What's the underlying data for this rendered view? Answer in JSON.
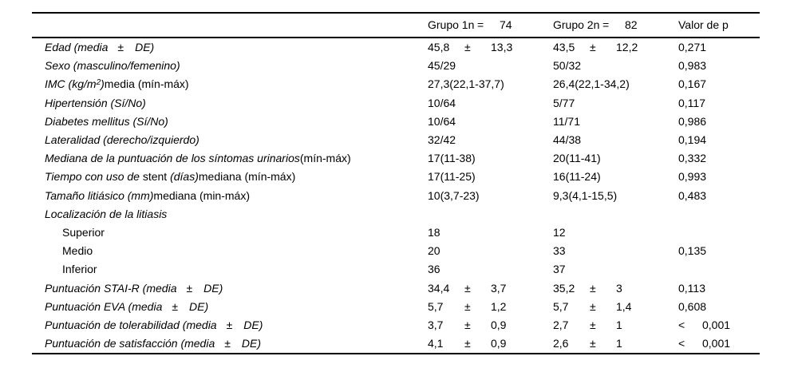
{
  "table": {
    "pm_symbol": "±",
    "header": {
      "group1": {
        "title": "Grupo 1n",
        "eq": "=",
        "n": "74"
      },
      "group2": {
        "title": "Grupo 2n",
        "eq": "=",
        "n": "82"
      },
      "p_label": "Valor de p"
    },
    "rows": [
      {
        "label": [
          {
            "t": "Edad (media",
            "i": true
          },
          {
            "t": "±",
            "i": true,
            "g": 12
          },
          {
            "t": "DE)",
            "i": true,
            "g": 14
          }
        ],
        "g1": {
          "m": "45,8",
          "sd": "13,3"
        },
        "g2": {
          "m": "43,5",
          "sd": "12,2"
        },
        "p": {
          "v": "0,271"
        }
      },
      {
        "label": [
          {
            "t": "Sexo (masculino/femenino)",
            "i": true
          }
        ],
        "g1": {
          "v": "45/29"
        },
        "g2": {
          "v": "50/32"
        },
        "p": {
          "v": "0,983"
        }
      },
      {
        "label": [
          {
            "t": "IMC (kg/m",
            "i": true
          },
          {
            "t": "2",
            "i": true,
            "sup": true
          },
          {
            "t": ")",
            "i": true
          },
          {
            "t": "media (mín-máx)",
            "i": false
          }
        ],
        "g1": {
          "v": "27,3(22,1-37,7)"
        },
        "g2": {
          "v": "26,4(22,1-34,2)"
        },
        "p": {
          "v": "0,167"
        }
      },
      {
        "label": [
          {
            "t": "Hipertensión (Sí/No)",
            "i": true
          }
        ],
        "g1": {
          "v": "10/64"
        },
        "g2": {
          "v": "5/77"
        },
        "p": {
          "v": "0,117"
        }
      },
      {
        "label": [
          {
            "t": "Diabetes mellitus (Sí/No)",
            "i": true
          }
        ],
        "g1": {
          "v": "10/64"
        },
        "g2": {
          "v": "11/71"
        },
        "p": {
          "v": "0,986"
        }
      },
      {
        "label": [
          {
            "t": "Lateralidad (derecho/izquierdo)",
            "i": true
          }
        ],
        "g1": {
          "v": "32/42"
        },
        "g2": {
          "v": "44/38"
        },
        "p": {
          "v": "0,194"
        }
      },
      {
        "label": [
          {
            "t": "Mediana de la puntuación de los síntomas urinarios",
            "i": true
          },
          {
            "t": "(mín-máx)",
            "i": false
          }
        ],
        "g1": {
          "v": "17(11-38)"
        },
        "g2": {
          "v": "20(11-41)"
        },
        "p": {
          "v": "0,332"
        }
      },
      {
        "label": [
          {
            "t": "Tiempo con uso de ",
            "i": true
          },
          {
            "t": "stent ",
            "i": false
          },
          {
            "t": "(días)",
            "i": true
          },
          {
            "t": "mediana (mín-máx)",
            "i": false
          }
        ],
        "g1": {
          "v": "17(11-25)"
        },
        "g2": {
          "v": "16(11-24)"
        },
        "p": {
          "v": "0,993"
        }
      },
      {
        "label": [
          {
            "t": "Tamaño litiásico (mm)",
            "i": true
          },
          {
            "t": "mediana (min-máx)",
            "i": false
          }
        ],
        "g1": {
          "v": "10(3,7-23)"
        },
        "g2": {
          "v": "9,3(4,1-15,5)"
        },
        "p": {
          "v": "0,483"
        }
      },
      {
        "label": [
          {
            "t": "Localización de la litiasis",
            "i": true
          }
        ]
      },
      {
        "indent": true,
        "label": [
          {
            "t": "Superior",
            "i": false
          }
        ],
        "g1": {
          "v": "18"
        },
        "g2": {
          "v": "12"
        }
      },
      {
        "indent": true,
        "label": [
          {
            "t": "Medio",
            "i": false
          }
        ],
        "g1": {
          "v": "20"
        },
        "g2": {
          "v": "33"
        },
        "p": {
          "v": "0,135"
        }
      },
      {
        "indent": true,
        "label": [
          {
            "t": "Inferior",
            "i": false
          }
        ],
        "g1": {
          "v": "36"
        },
        "g2": {
          "v": "37"
        }
      },
      {
        "label": [
          {
            "t": "Puntuación STAI-R (media",
            "i": true
          },
          {
            "t": "±",
            "i": true,
            "g": 12
          },
          {
            "t": "DE)",
            "i": true,
            "g": 14
          }
        ],
        "g1": {
          "m": "34,4",
          "sd": "3,7"
        },
        "g2": {
          "m": "35,2",
          "sd": "3"
        },
        "p": {
          "v": "0,113"
        }
      },
      {
        "label": [
          {
            "t": "Puntuación EVA (media",
            "i": true
          },
          {
            "t": "±",
            "i": true,
            "g": 12
          },
          {
            "t": "DE)",
            "i": true,
            "g": 14
          }
        ],
        "g1": {
          "m": "5,7",
          "sd": "1,2"
        },
        "g2": {
          "m": "5,7",
          "sd": "1,4"
        },
        "p": {
          "v": "0,608"
        }
      },
      {
        "label": [
          {
            "t": "Puntuación de tolerabilidad (media",
            "i": true
          },
          {
            "t": "±",
            "i": true,
            "g": 12
          },
          {
            "t": "DE)",
            "i": true,
            "g": 14
          }
        ],
        "g1": {
          "m": "3,7",
          "sd": "0,9"
        },
        "g2": {
          "m": "2,7",
          "sd": "1"
        },
        "p": {
          "lt": "<",
          "v": "0,001"
        }
      },
      {
        "label": [
          {
            "t": "Puntuación de satisfacción (media",
            "i": true
          },
          {
            "t": "±",
            "i": true,
            "g": 12
          },
          {
            "t": "DE)",
            "i": true,
            "g": 14
          }
        ],
        "g1": {
          "m": "4,1",
          "sd": "0,9"
        },
        "g2": {
          "m": "2,6",
          "sd": "1"
        },
        "p": {
          "lt": "<",
          "v": "0,001"
        }
      }
    ]
  }
}
